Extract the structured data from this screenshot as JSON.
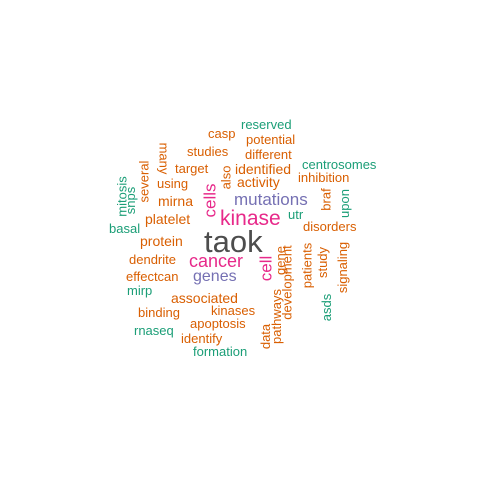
{
  "colors": {
    "gray": "#4d4d4d",
    "magenta": "#e7298a",
    "purple": "#7570b3",
    "orange": "#d95f02",
    "green": "#1b9e77"
  },
  "words": [
    {
      "text": "taok",
      "color": "gray"
    },
    {
      "text": "kinase",
      "color": "magenta"
    },
    {
      "text": "cancer",
      "color": "magenta"
    },
    {
      "text": "cells",
      "color": "magenta"
    },
    {
      "text": "cell",
      "color": "magenta"
    },
    {
      "text": "mutations",
      "color": "purple"
    },
    {
      "text": "genes",
      "color": "purple"
    },
    {
      "text": "associated",
      "color": "orange"
    },
    {
      "text": "platelet",
      "color": "orange"
    },
    {
      "text": "activity",
      "color": "orange"
    },
    {
      "text": "gene",
      "color": "orange"
    },
    {
      "text": "development",
      "color": "orange"
    },
    {
      "text": "identified",
      "color": "orange"
    },
    {
      "text": "mirna",
      "color": "orange"
    },
    {
      "text": "protein",
      "color": "orange"
    },
    {
      "text": "disorders",
      "color": "orange"
    },
    {
      "text": "kinases",
      "color": "orange"
    },
    {
      "text": "apoptosis",
      "color": "orange"
    },
    {
      "text": "dendrite",
      "color": "orange"
    },
    {
      "text": "effectcan",
      "color": "orange"
    },
    {
      "text": "binding",
      "color": "orange"
    },
    {
      "text": "identify",
      "color": "orange"
    },
    {
      "text": "studies",
      "color": "orange"
    },
    {
      "text": "different",
      "color": "orange"
    },
    {
      "text": "potential",
      "color": "orange"
    },
    {
      "text": "target",
      "color": "orange"
    },
    {
      "text": "using",
      "color": "orange"
    },
    {
      "text": "inhibition",
      "color": "orange"
    },
    {
      "text": "casp",
      "color": "orange"
    },
    {
      "text": "many",
      "color": "orange"
    },
    {
      "text": "several",
      "color": "orange"
    },
    {
      "text": "also",
      "color": "orange"
    },
    {
      "text": "patients",
      "color": "orange"
    },
    {
      "text": "study",
      "color": "orange"
    },
    {
      "text": "signaling",
      "color": "orange"
    },
    {
      "text": "braf",
      "color": "orange"
    },
    {
      "text": "pathways",
      "color": "orange"
    },
    {
      "text": "data",
      "color": "orange"
    },
    {
      "text": "reserved",
      "color": "green"
    },
    {
      "text": "centrosomes",
      "color": "green"
    },
    {
      "text": "utr",
      "color": "green"
    },
    {
      "text": "upon",
      "color": "green"
    },
    {
      "text": "mitosis",
      "color": "green"
    },
    {
      "text": "snps",
      "color": "green"
    },
    {
      "text": "basal",
      "color": "green"
    },
    {
      "text": "mirp",
      "color": "green"
    },
    {
      "text": "rnaseq",
      "color": "green"
    },
    {
      "text": "formation",
      "color": "green"
    },
    {
      "text": "asds",
      "color": "green"
    }
  ]
}
